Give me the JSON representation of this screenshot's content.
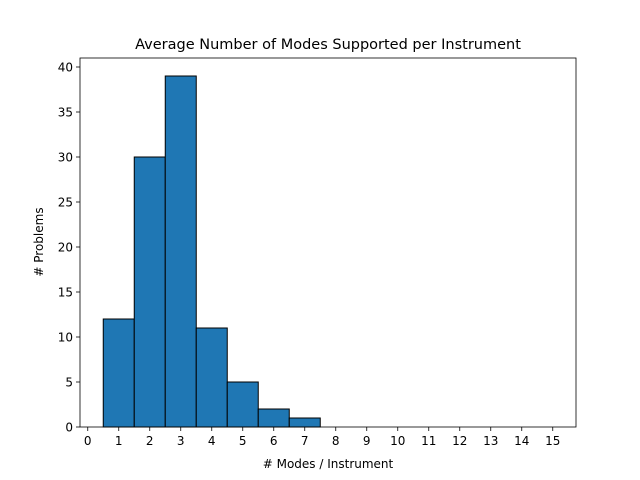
{
  "chart_data": {
    "type": "bar",
    "title": "Average Number of Modes Supported per Instrument",
    "xlabel": "# Modes / Instrument",
    "ylabel": "# Problems",
    "xlim": [
      -0.25,
      15.75
    ],
    "ylim": [
      0,
      41
    ],
    "x_ticks": [
      0,
      1,
      2,
      3,
      4,
      5,
      6,
      7,
      8,
      9,
      10,
      11,
      12,
      13,
      14,
      15
    ],
    "y_ticks": [
      0,
      5,
      10,
      15,
      20,
      25,
      30,
      35,
      40
    ],
    "bin_width": 1,
    "categories": [
      1,
      2,
      3,
      4,
      5,
      6,
      7,
      8,
      9,
      10,
      11,
      12,
      13,
      14,
      15
    ],
    "values": [
      12,
      30,
      39,
      11,
      5,
      2,
      1,
      0,
      0,
      0,
      0,
      0,
      0,
      0,
      0
    ],
    "bar_color": "#1f77b4",
    "edge_color": "#000000",
    "grid": false,
    "legend": "none"
  }
}
